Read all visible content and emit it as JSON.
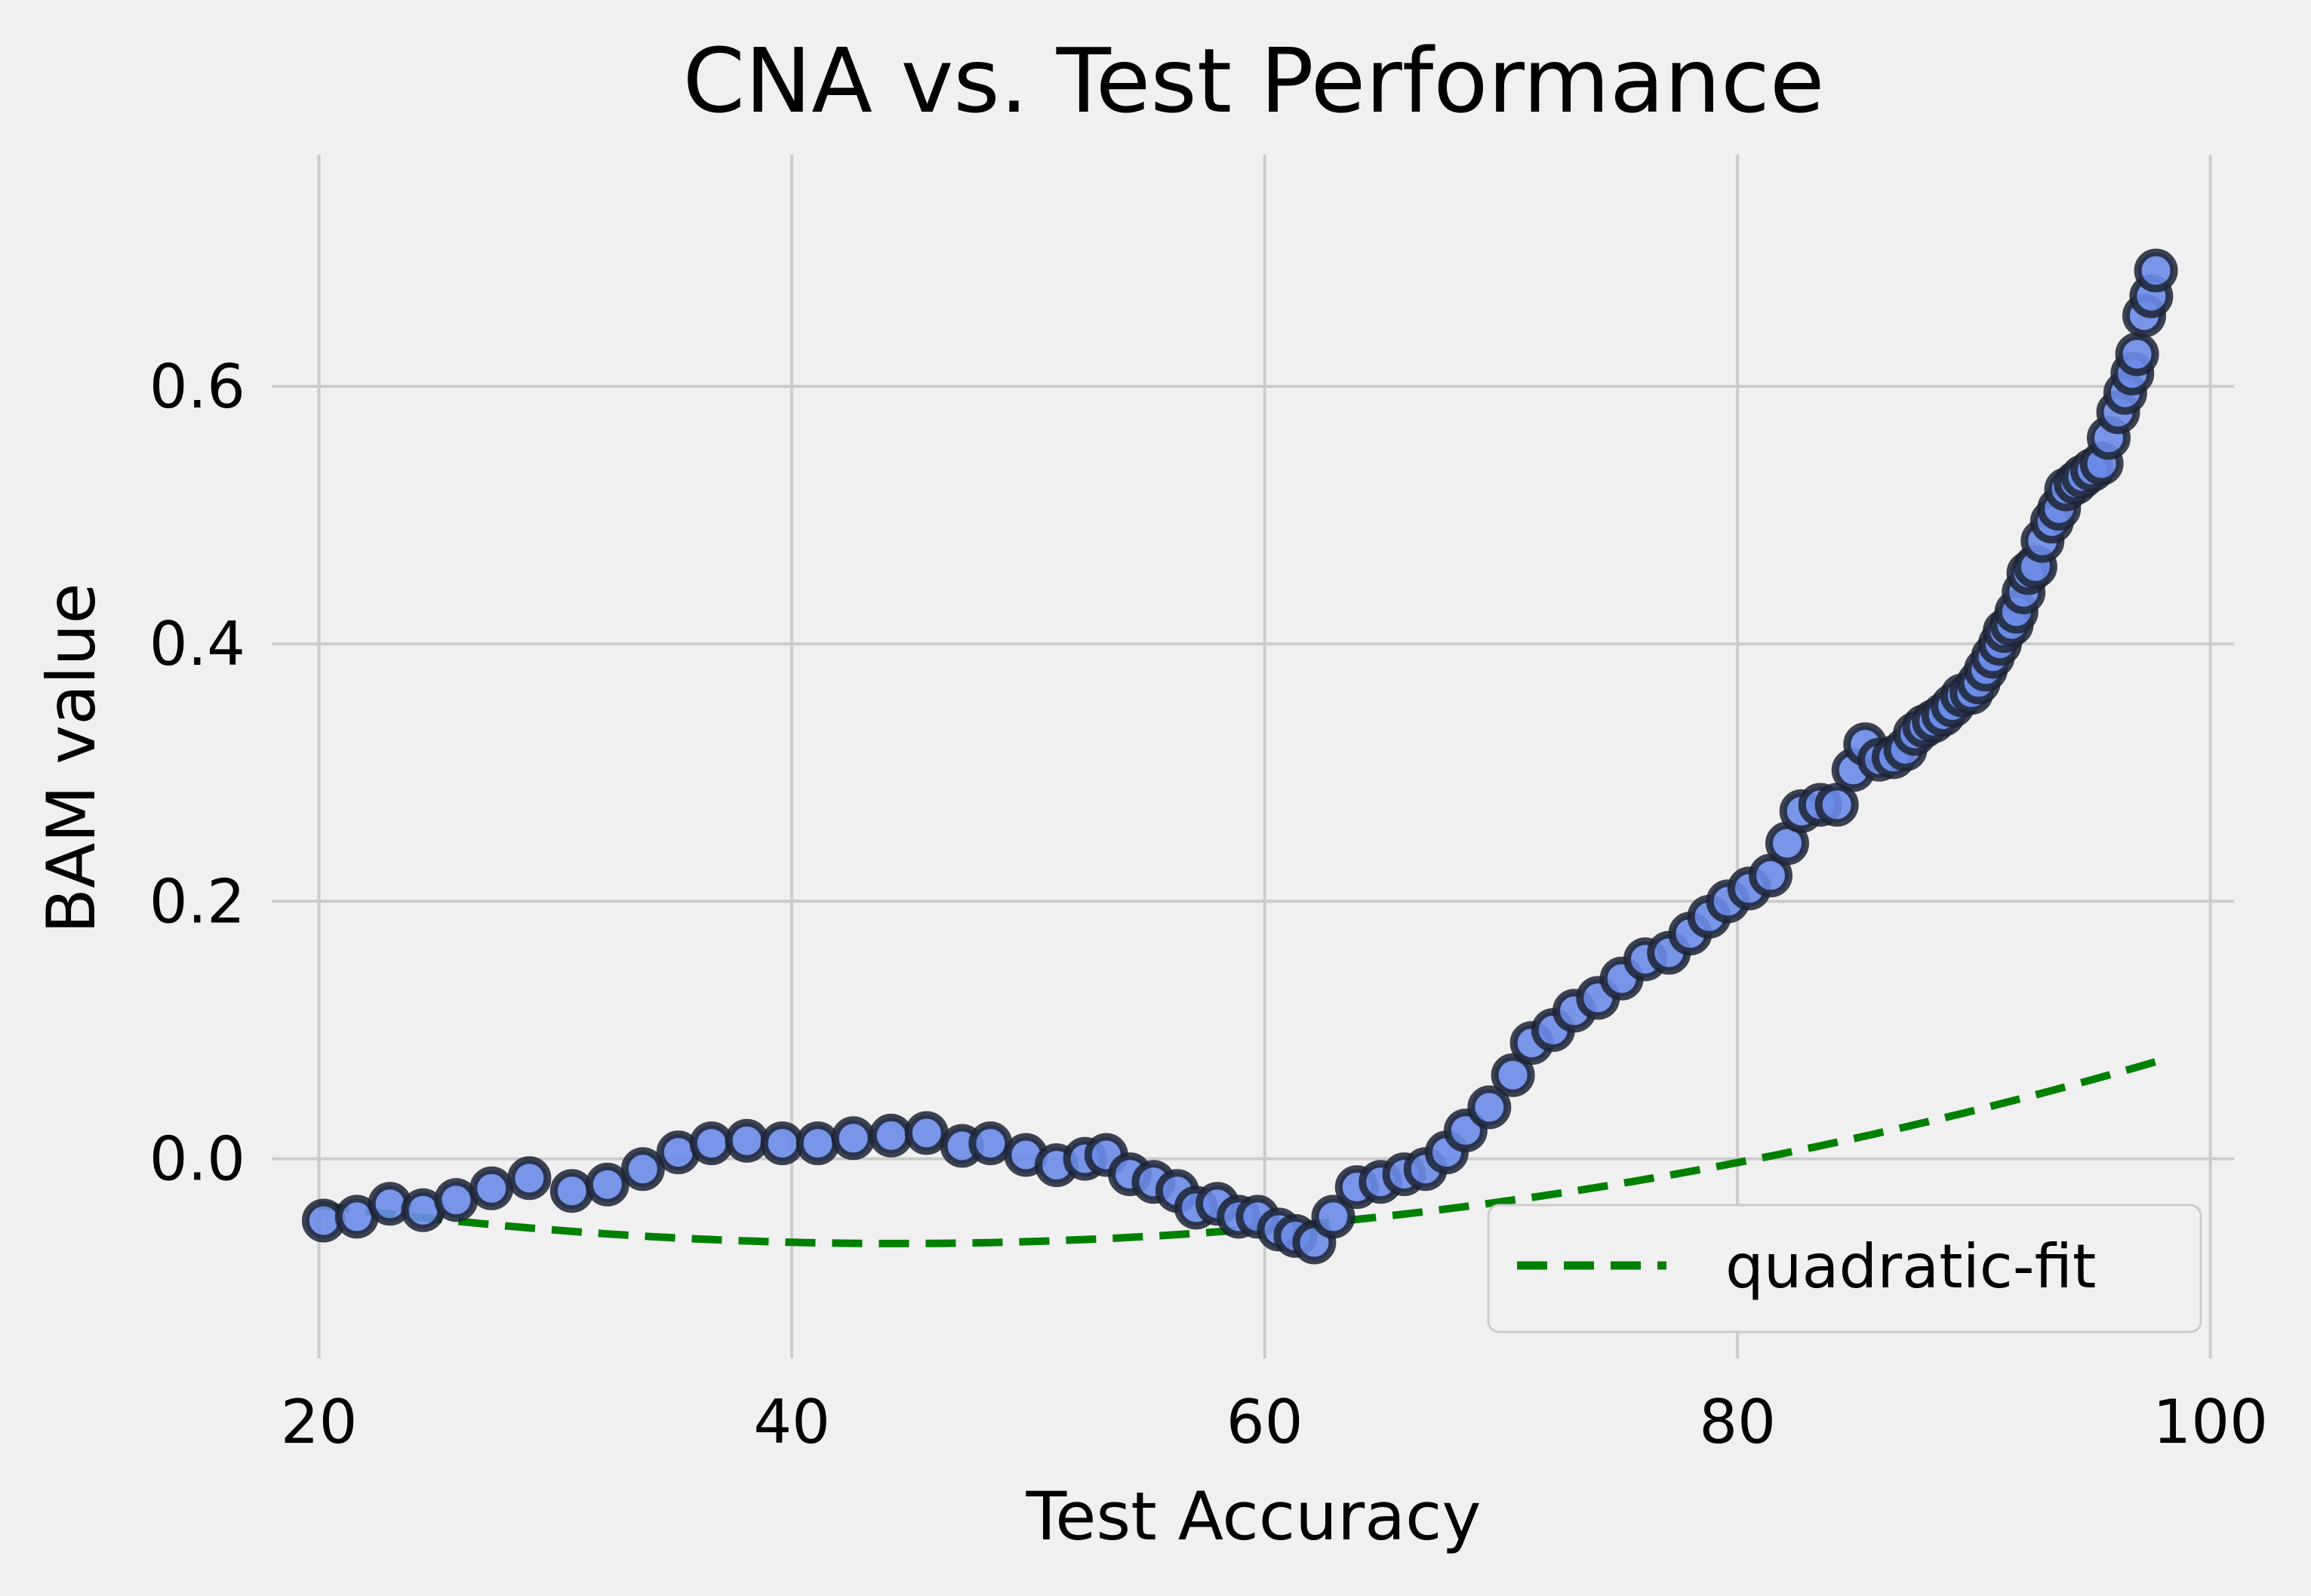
{
  "chart_data": {
    "type": "scatter",
    "title": "CNA vs. Test Performance",
    "xlabel": "Test Accuracy",
    "ylabel": "BAM value",
    "xlim": [
      18,
      101
    ],
    "ylim": [
      -0.155,
      0.78
    ],
    "x_ticks": [
      20,
      40,
      60,
      80,
      100
    ],
    "y_ticks": [
      0.0,
      0.2,
      0.4,
      0.6
    ],
    "x_tick_labels": [
      "20",
      "40",
      "60",
      "80",
      "100"
    ],
    "y_tick_labels": [
      "0.0",
      "0.2",
      "0.4",
      "0.6"
    ],
    "grid": true,
    "legend": {
      "position": "lower-right",
      "entries": [
        "quadratic-fit"
      ]
    },
    "colors": {
      "points": "#6a8be8",
      "point_edge": "#1c2333",
      "fit": "#008000",
      "background": "#f0f0f0",
      "grid": "#cbcbcb"
    },
    "series": [
      {
        "kind": "points",
        "x": [
          20.2,
          21.6,
          23.0,
          24.4,
          25.8,
          27.3,
          28.9,
          30.7,
          32.2,
          33.7,
          35.2,
          36.6,
          38.1,
          39.6,
          41.1,
          42.6,
          44.2,
          45.7,
          47.2,
          48.4,
          49.9,
          51.2,
          52.4,
          53.3,
          54.3,
          55.3,
          56.3,
          57.1,
          58.0,
          58.9,
          59.7,
          60.6,
          61.3,
          62.1,
          62.9,
          63.9,
          64.9,
          65.9,
          66.8,
          67.7,
          68.5,
          69.5,
          70.5,
          71.3,
          72.2,
          73.1,
          74.1,
          75.1,
          76.1,
          77.1,
          78.0,
          78.8,
          79.6,
          80.5,
          81.4,
          82.1,
          82.7,
          83.5,
          84.2,
          84.9,
          85.4,
          86.0,
          86.6,
          87.1,
          87.5,
          87.9,
          88.3,
          88.7,
          89.1,
          89.5,
          89.9,
          90.2,
          90.5,
          90.8,
          91.1,
          91.3,
          91.6,
          91.8,
          92.1,
          92.3,
          92.6,
          92.9,
          93.3,
          93.6,
          93.9,
          94.3,
          94.6,
          95.0,
          95.4,
          95.7,
          96.1,
          96.4,
          96.7,
          96.9,
          97.2,
          97.5,
          97.7
        ],
        "y": [
          -0.048,
          -0.045,
          -0.035,
          -0.04,
          -0.032,
          -0.023,
          -0.015,
          -0.025,
          -0.02,
          -0.008,
          0.005,
          0.012,
          0.014,
          0.012,
          0.012,
          0.016,
          0.018,
          0.02,
          0.01,
          0.012,
          0.003,
          -0.005,
          0.0,
          0.003,
          -0.012,
          -0.018,
          -0.025,
          -0.038,
          -0.035,
          -0.045,
          -0.045,
          -0.055,
          -0.06,
          -0.065,
          -0.045,
          -0.022,
          -0.018,
          -0.012,
          -0.008,
          0.005,
          0.022,
          0.04,
          0.065,
          0.09,
          0.1,
          0.115,
          0.125,
          0.14,
          0.155,
          0.16,
          0.175,
          0.188,
          0.2,
          0.21,
          0.22,
          0.245,
          0.27,
          0.275,
          0.275,
          0.302,
          0.322,
          0.31,
          0.312,
          0.318,
          0.33,
          0.336,
          0.34,
          0.345,
          0.352,
          0.36,
          0.362,
          0.37,
          0.38,
          0.39,
          0.4,
          0.41,
          0.415,
          0.425,
          0.44,
          0.455,
          0.46,
          0.48,
          0.495,
          0.505,
          0.52,
          0.525,
          0.53,
          0.535,
          0.54,
          0.56,
          0.58,
          0.595,
          0.61,
          0.625,
          0.655,
          0.67,
          0.69
        ]
      },
      {
        "kind": "line",
        "name": "quadratic-fit",
        "quadratic_coefficients": [
          4.99e-05,
          -0.00444,
          0.0329
        ],
        "x_range": [
          20,
          97.7
        ]
      }
    ]
  }
}
